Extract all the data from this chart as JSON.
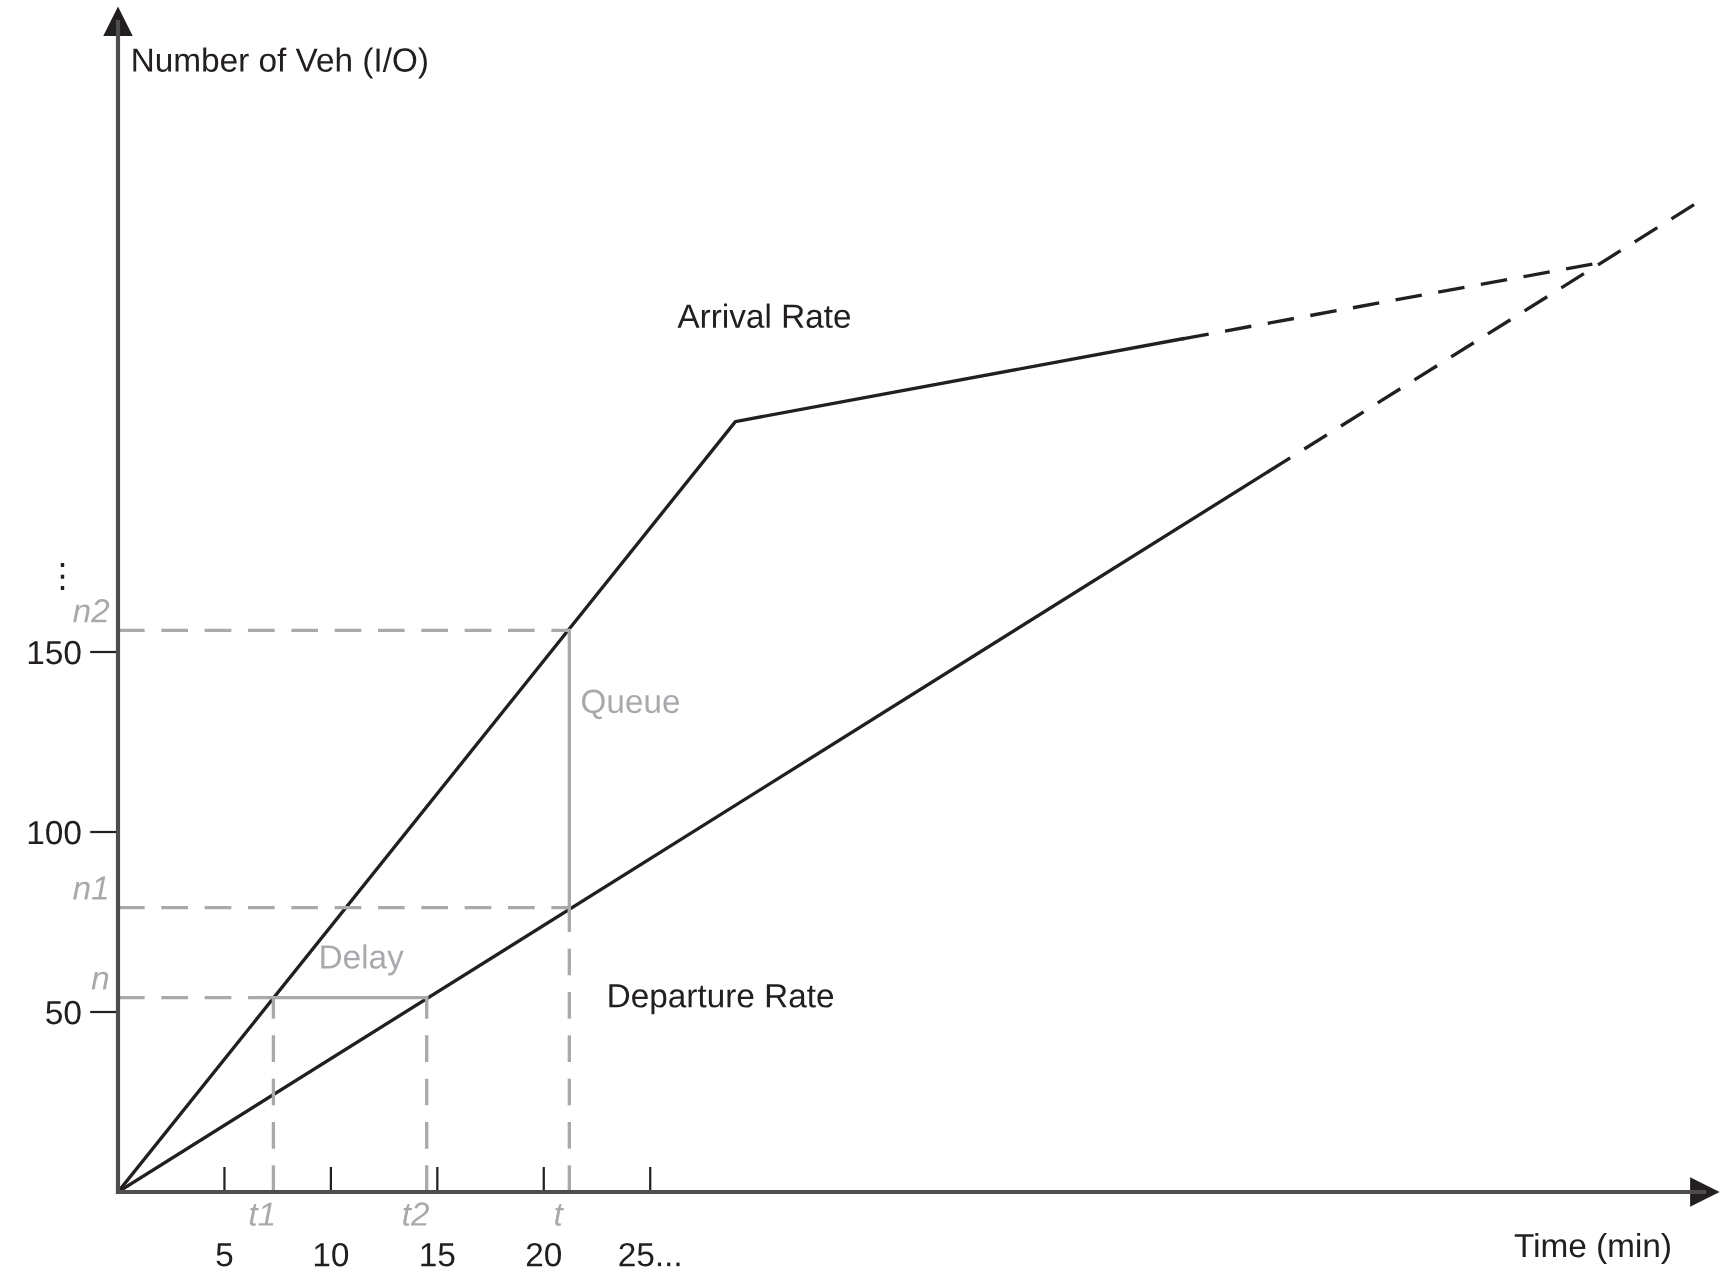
{
  "chart_data": {
    "type": "line",
    "xlabel": "Time (min)",
    "ylabel": "Number of Veh (I/O)",
    "xlim": [
      0,
      74.5
    ],
    "ylim": [
      0,
      325
    ],
    "xticks": [
      5,
      10,
      15,
      20,
      {
        "value": 25,
        "label": "25..."
      }
    ],
    "yticks": [
      50,
      100,
      150
    ],
    "grid": false,
    "marker": "none",
    "series": [
      {
        "name": "Arrival Rate",
        "color": "#231f20",
        "x": [
          0,
          29,
          50
        ],
        "values": [
          0,
          214,
          237
        ],
        "line_style": "solid"
      },
      {
        "color": "#231f20",
        "x": [
          50,
          69.5
        ],
        "values": [
          237,
          258
        ],
        "line_style": "dashed"
      },
      {
        "name": "Departure Rate",
        "color": "#231f20",
        "x": [
          0,
          54
        ],
        "values": [
          0,
          200
        ],
        "line_style": "solid"
      },
      {
        "color": "#231f20",
        "x": [
          54,
          74.5
        ],
        "values": [
          200,
          276
        ],
        "line_style": "dashed"
      },
      {
        "color": "#a7a9ac",
        "x": [
          0,
          7.3
        ],
        "values": [
          54,
          54
        ],
        "line_style": "dashed"
      },
      {
        "color": "#a7a9ac",
        "x": [
          7.3,
          7.3
        ],
        "values": [
          0,
          54
        ],
        "line_style": "dashed"
      },
      {
        "color": "#a7a9ac",
        "x": [
          14.5,
          14.5
        ],
        "values": [
          0,
          54
        ],
        "line_style": "dashed"
      },
      {
        "color": "#a7a9ac",
        "x": [
          7.3,
          14.5
        ],
        "values": [
          54,
          54
        ],
        "line_style": "solid"
      },
      {
        "color": "#a7a9ac",
        "x": [
          0,
          21.2
        ],
        "values": [
          79,
          79
        ],
        "line_style": "dashed"
      },
      {
        "color": "#a7a9ac",
        "x": [
          0,
          21.2
        ],
        "values": [
          156,
          156
        ],
        "line_style": "dashed"
      },
      {
        "color": "#a7a9ac",
        "x": [
          21.2,
          21.2
        ],
        "values": [
          0,
          79
        ],
        "line_style": "dashed"
      },
      {
        "color": "#a7a9ac",
        "x": [
          21.2,
          21.2
        ],
        "values": [
          79,
          156
        ],
        "line_style": "solid"
      }
    ],
    "annotations": [
      {
        "text": "Delay",
        "x": 10.9,
        "y": 54
      },
      {
        "text": "Queue",
        "x": 21.2,
        "y": 125
      },
      {
        "text": "n",
        "x": 0,
        "y": 54
      },
      {
        "text": "n1",
        "x": 0,
        "y": 79
      },
      {
        "text": "n2",
        "x": 0,
        "y": 156
      },
      {
        "text": "t1",
        "x": 7.3,
        "y": 0
      },
      {
        "text": "t2",
        "x": 14.5,
        "y": 0
      },
      {
        "text": "t",
        "x": 21.2,
        "y": 0
      },
      "⋮"
    ]
  }
}
